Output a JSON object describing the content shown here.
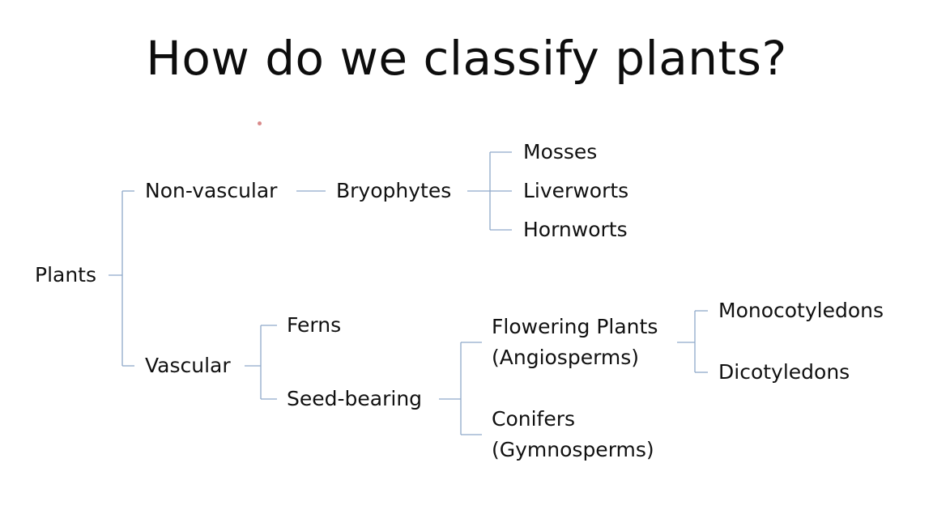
{
  "title": "How do we classify plants?",
  "diagram": {
    "root": "Plants",
    "non_vascular": "Non-vascular",
    "bryophytes": "Bryophytes",
    "mosses": "Mosses",
    "liverworts": "Liverworts",
    "hornworts": "Hornworts",
    "vascular": "Vascular",
    "ferns": "Ferns",
    "seed_bearing": "Seed-bearing",
    "flowering_line1": "Flowering Plants",
    "flowering_line2": "(Angiosperms)",
    "conifers_line1": "Conifers",
    "conifers_line2": "(Gymnosperms)",
    "monocotyledons": "Monocotyledons",
    "dicotyledons": "Dicotyledons"
  },
  "colors": {
    "connector": "#8fa9c9",
    "text": "#111111",
    "background": "#ffffff"
  }
}
